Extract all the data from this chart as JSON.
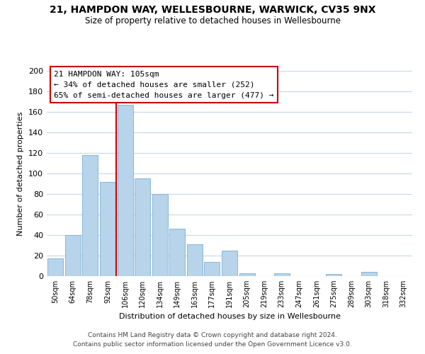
{
  "title": "21, HAMPDON WAY, WELLESBOURNE, WARWICK, CV35 9NX",
  "subtitle": "Size of property relative to detached houses in Wellesbourne",
  "xlabel": "Distribution of detached houses by size in Wellesbourne",
  "ylabel": "Number of detached properties",
  "bar_labels": [
    "50sqm",
    "64sqm",
    "78sqm",
    "92sqm",
    "106sqm",
    "120sqm",
    "134sqm",
    "149sqm",
    "163sqm",
    "177sqm",
    "191sqm",
    "205sqm",
    "219sqm",
    "233sqm",
    "247sqm",
    "261sqm",
    "275sqm",
    "289sqm",
    "303sqm",
    "318sqm",
    "332sqm"
  ],
  "bar_values": [
    17,
    40,
    118,
    92,
    167,
    95,
    80,
    46,
    31,
    14,
    25,
    3,
    0,
    3,
    0,
    0,
    2,
    0,
    4,
    0,
    0
  ],
  "bar_color": "#b8d4ea",
  "bar_edge_color": "#7aaed4",
  "ylim": [
    0,
    200
  ],
  "yticks": [
    0,
    20,
    40,
    60,
    80,
    100,
    120,
    140,
    160,
    180,
    200
  ],
  "property_line_color": "#cc0000",
  "annotation_title": "21 HAMPDON WAY: 105sqm",
  "annotation_line1": "← 34% of detached houses are smaller (252)",
  "annotation_line2": "65% of semi-detached houses are larger (477) →",
  "footer_line1": "Contains HM Land Registry data © Crown copyright and database right 2024.",
  "footer_line2": "Contains public sector information licensed under the Open Government Licence v3.0.",
  "background_color": "#ffffff",
  "grid_color": "#c8d8e8"
}
